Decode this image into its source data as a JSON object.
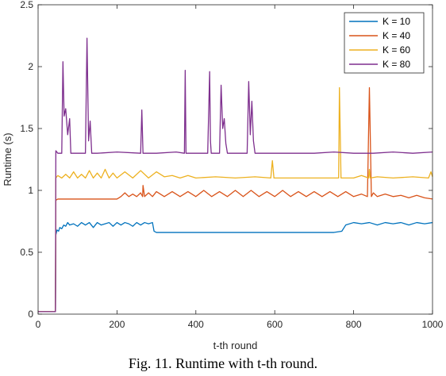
{
  "caption": "Fig. 11. Runtime with t-th round.",
  "chart_data": {
    "type": "line",
    "title": "",
    "xlabel": "t-th round",
    "ylabel": "Runtime (s)",
    "xlim": [
      0,
      1000
    ],
    "ylim": [
      0,
      2.5
    ],
    "x_ticks": [
      0,
      200,
      400,
      600,
      800,
      1000
    ],
    "y_ticks": [
      0,
      0.5,
      1,
      1.5,
      2,
      2.5
    ],
    "grid": false,
    "legend_position": "top-right",
    "series": [
      {
        "name": "K = 10",
        "color": "#0072BD",
        "x": [
          0,
          44,
          45,
          48,
          52,
          55,
          60,
          65,
          70,
          75,
          80,
          90,
          100,
          110,
          120,
          130,
          140,
          150,
          160,
          170,
          180,
          190,
          200,
          210,
          220,
          230,
          240,
          250,
          260,
          270,
          280,
          290,
          294,
          300,
          350,
          400,
          450,
          500,
          550,
          600,
          650,
          700,
          750,
          770,
          780,
          800,
          820,
          840,
          860,
          880,
          900,
          920,
          940,
          960,
          980,
          1000
        ],
        "y": [
          0.02,
          0.02,
          0.64,
          0.68,
          0.67,
          0.7,
          0.69,
          0.72,
          0.71,
          0.74,
          0.72,
          0.73,
          0.71,
          0.74,
          0.72,
          0.74,
          0.7,
          0.74,
          0.72,
          0.73,
          0.74,
          0.71,
          0.74,
          0.72,
          0.74,
          0.73,
          0.71,
          0.74,
          0.72,
          0.74,
          0.73,
          0.74,
          0.67,
          0.66,
          0.66,
          0.66,
          0.66,
          0.66,
          0.66,
          0.66,
          0.66,
          0.66,
          0.66,
          0.67,
          0.72,
          0.74,
          0.73,
          0.74,
          0.72,
          0.74,
          0.73,
          0.74,
          0.72,
          0.74,
          0.73,
          0.74
        ]
      },
      {
        "name": "K = 40",
        "color": "#D95319",
        "x": [
          0,
          44,
          45,
          50,
          100,
          150,
          200,
          210,
          220,
          230,
          240,
          250,
          260,
          265,
          266,
          270,
          280,
          290,
          300,
          320,
          340,
          360,
          380,
          400,
          420,
          440,
          460,
          480,
          500,
          520,
          540,
          560,
          580,
          600,
          620,
          640,
          660,
          680,
          700,
          720,
          740,
          760,
          780,
          800,
          820,
          835,
          840,
          845,
          850,
          860,
          880,
          900,
          920,
          940,
          960,
          980,
          1000
        ],
        "y": [
          0.02,
          0.02,
          0.92,
          0.93,
          0.93,
          0.93,
          0.93,
          0.95,
          0.98,
          0.95,
          0.97,
          0.95,
          0.98,
          0.95,
          1.04,
          0.95,
          0.98,
          0.95,
          0.99,
          0.95,
          0.99,
          0.95,
          0.99,
          0.95,
          1.0,
          0.95,
          0.99,
          0.95,
          1.0,
          0.95,
          1.0,
          0.95,
          0.99,
          0.95,
          1.0,
          0.95,
          0.99,
          0.95,
          0.99,
          0.95,
          0.99,
          0.95,
          0.99,
          0.95,
          0.97,
          0.95,
          1.83,
          0.95,
          0.98,
          0.95,
          0.97,
          0.95,
          0.96,
          0.94,
          0.96,
          0.94,
          0.93
        ]
      },
      {
        "name": "K = 60",
        "color": "#EDB120",
        "x": [
          0,
          44,
          45,
          50,
          60,
          70,
          80,
          90,
          100,
          110,
          120,
          130,
          140,
          150,
          160,
          170,
          180,
          190,
          200,
          220,
          240,
          260,
          280,
          300,
          320,
          340,
          360,
          380,
          400,
          450,
          500,
          550,
          590,
          594,
          598,
          650,
          700,
          750,
          762,
          764,
          768,
          800,
          820,
          838,
          840,
          842,
          860,
          900,
          950,
          990,
          996,
          1000
        ],
        "y": [
          0.02,
          0.02,
          1.1,
          1.12,
          1.1,
          1.13,
          1.1,
          1.15,
          1.1,
          1.13,
          1.1,
          1.16,
          1.1,
          1.14,
          1.1,
          1.17,
          1.1,
          1.14,
          1.1,
          1.15,
          1.1,
          1.16,
          1.1,
          1.15,
          1.11,
          1.12,
          1.1,
          1.12,
          1.1,
          1.11,
          1.1,
          1.11,
          1.1,
          1.24,
          1.1,
          1.1,
          1.1,
          1.1,
          1.1,
          1.83,
          1.1,
          1.1,
          1.12,
          1.1,
          1.17,
          1.1,
          1.11,
          1.1,
          1.11,
          1.1,
          1.15,
          1.11
        ]
      },
      {
        "name": "K = 80",
        "color": "#7E2F8E",
        "x": [
          0,
          44,
          45,
          50,
          60,
          63,
          66,
          70,
          75,
          80,
          83,
          86,
          100,
          120,
          124,
          128,
          132,
          136,
          140,
          150,
          200,
          260,
          263,
          266,
          300,
          350,
          371,
          373,
          375,
          400,
          430,
          435,
          437,
          439,
          460,
          464,
          468,
          472,
          476,
          480,
          500,
          530,
          534,
          538,
          542,
          546,
          550,
          600,
          650,
          700,
          750,
          800,
          850,
          900,
          950,
          1000
        ],
        "y": [
          0.02,
          0.02,
          1.32,
          1.3,
          1.3,
          2.04,
          1.6,
          1.66,
          1.45,
          1.58,
          1.3,
          1.3,
          1.3,
          1.3,
          2.23,
          1.4,
          1.56,
          1.3,
          1.3,
          1.3,
          1.31,
          1.3,
          1.65,
          1.3,
          1.3,
          1.31,
          1.3,
          1.97,
          1.3,
          1.3,
          1.3,
          1.96,
          1.4,
          1.3,
          1.3,
          1.85,
          1.5,
          1.58,
          1.38,
          1.3,
          1.3,
          1.3,
          1.88,
          1.45,
          1.72,
          1.4,
          1.3,
          1.3,
          1.3,
          1.3,
          1.31,
          1.3,
          1.3,
          1.31,
          1.3,
          1.31
        ]
      }
    ]
  }
}
